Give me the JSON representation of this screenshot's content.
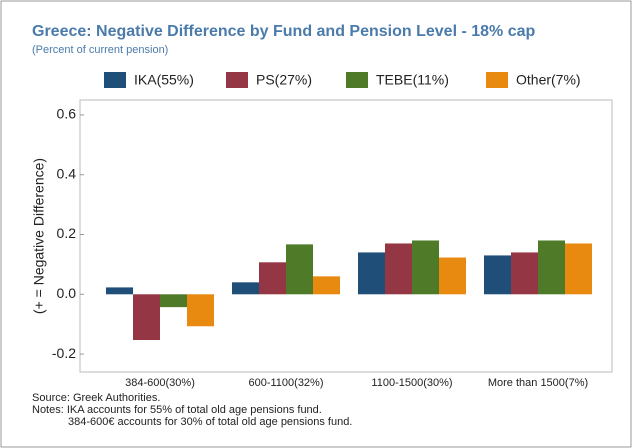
{
  "chart_data": {
    "type": "bar",
    "title": "Greece: Negative Difference by Fund and Pension Level - 18% cap",
    "subtitle": "(Percent of current pension)",
    "y_label": "(+ = Negative Difference)",
    "categories": [
      "384-600(30%)",
      "600-1100(32%)",
      "1100-1500(30%)",
      "More than 1500(7%)"
    ],
    "series": [
      {
        "name": "IKA(55%)",
        "color": "#1f4e79",
        "values": [
          0.023,
          0.04,
          0.14,
          0.13
        ]
      },
      {
        "name": "PS(27%)",
        "color": "#943643",
        "values": [
          -0.153,
          0.107,
          0.17,
          0.14
        ]
      },
      {
        "name": "TEBE(11%)",
        "color": "#4f7a28",
        "values": [
          -0.043,
          0.167,
          0.18,
          0.18
        ]
      },
      {
        "name": "Other(7%)",
        "color": "#e88a10",
        "values": [
          -0.107,
          0.06,
          0.123,
          0.17
        ]
      }
    ],
    "ylim": [
      -0.26,
      0.65
    ],
    "yticks": [
      -0.2,
      {
        "value": 0,
        "label": "0.0"
      },
      0.2,
      0.4,
      0.6
    ],
    "source": "Source: Greek Authorities.",
    "notes": [
      "Notes: IKA accounts for 55% of total old age pensions fund.",
      "384-600€ accounts for 30% of total old age pensions fund."
    ]
  }
}
